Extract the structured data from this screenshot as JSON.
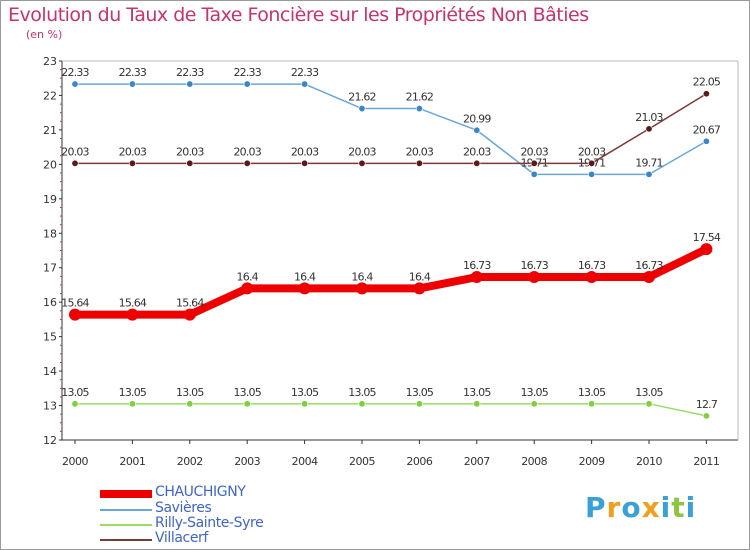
{
  "title": "Evolution du Taux de Taxe Foncière sur les Propriétés Non Bâties",
  "subtitle": "(en %)",
  "logo": {
    "text": "Proxiti",
    "letters": [
      "P",
      "r",
      "o",
      "x",
      "i",
      "t",
      "i"
    ],
    "colors": [
      "#3aa0d8",
      "#f0a020",
      "#3aa0d8",
      "#f0a020",
      "#3aa0d8",
      "#8cc63f",
      "#3aa0d8"
    ]
  },
  "chart_data": {
    "type": "line",
    "x": [
      "2000",
      "2001",
      "2002",
      "2003",
      "2004",
      "2005",
      "2006",
      "2007",
      "2008",
      "2009",
      "2010",
      "2011"
    ],
    "ylim": [
      12,
      23
    ],
    "yticks": [
      "12",
      "13",
      "14",
      "15",
      "16",
      "17",
      "18",
      "19",
      "20",
      "21",
      "22",
      "23"
    ],
    "grid": false,
    "legend_position": "bottom-left",
    "series": [
      {
        "name": "CHAUCHIGNY",
        "color": "#ee0000",
        "width": 8,
        "values": [
          15.64,
          15.64,
          15.64,
          16.4,
          16.4,
          16.4,
          16.4,
          16.73,
          16.73,
          16.73,
          16.73,
          17.54
        ],
        "labels": [
          "15.64",
          "15.64",
          "15.64",
          "16.4",
          "16.4",
          "16.4",
          "16.4",
          "16.73",
          "16.73",
          "16.73",
          "16.73",
          "17.54"
        ]
      },
      {
        "name": "Savières",
        "color": "#6aa6d8",
        "point_color": "#3a86c8",
        "width": 1.5,
        "values": [
          22.33,
          22.33,
          22.33,
          22.33,
          22.33,
          21.62,
          21.62,
          20.99,
          19.71,
          19.71,
          19.71,
          20.67
        ],
        "labels": [
          "22.33",
          "22.33",
          "22.33",
          "22.33",
          "22.33",
          "21.62",
          "21.62",
          "20.99",
          "19.71",
          "19.71",
          "19.71",
          "20.67"
        ]
      },
      {
        "name": "Rilly-Sainte-Syre",
        "color": "#99dd66",
        "point_color": "#7fcf3f",
        "width": 1.5,
        "values": [
          13.05,
          13.05,
          13.05,
          13.05,
          13.05,
          13.05,
          13.05,
          13.05,
          13.05,
          13.05,
          13.05,
          12.7
        ],
        "labels": [
          "13.05",
          "13.05",
          "13.05",
          "13.05",
          "13.05",
          "13.05",
          "13.05",
          "13.05",
          "13.05",
          "13.05",
          "13.05",
          "12.7"
        ]
      },
      {
        "name": "Villacerf",
        "color": "#7b3a3a",
        "point_color": "#5a1a1a",
        "width": 1.5,
        "values": [
          20.03,
          20.03,
          20.03,
          20.03,
          20.03,
          20.03,
          20.03,
          20.03,
          20.03,
          20.03,
          21.03,
          22.05
        ],
        "labels": [
          "20.03",
          "20.03",
          "20.03",
          "20.03",
          "20.03",
          "20.03",
          "20.03",
          "20.03",
          "20.03",
          "20.03",
          "21.03",
          "22.05"
        ]
      }
    ]
  }
}
